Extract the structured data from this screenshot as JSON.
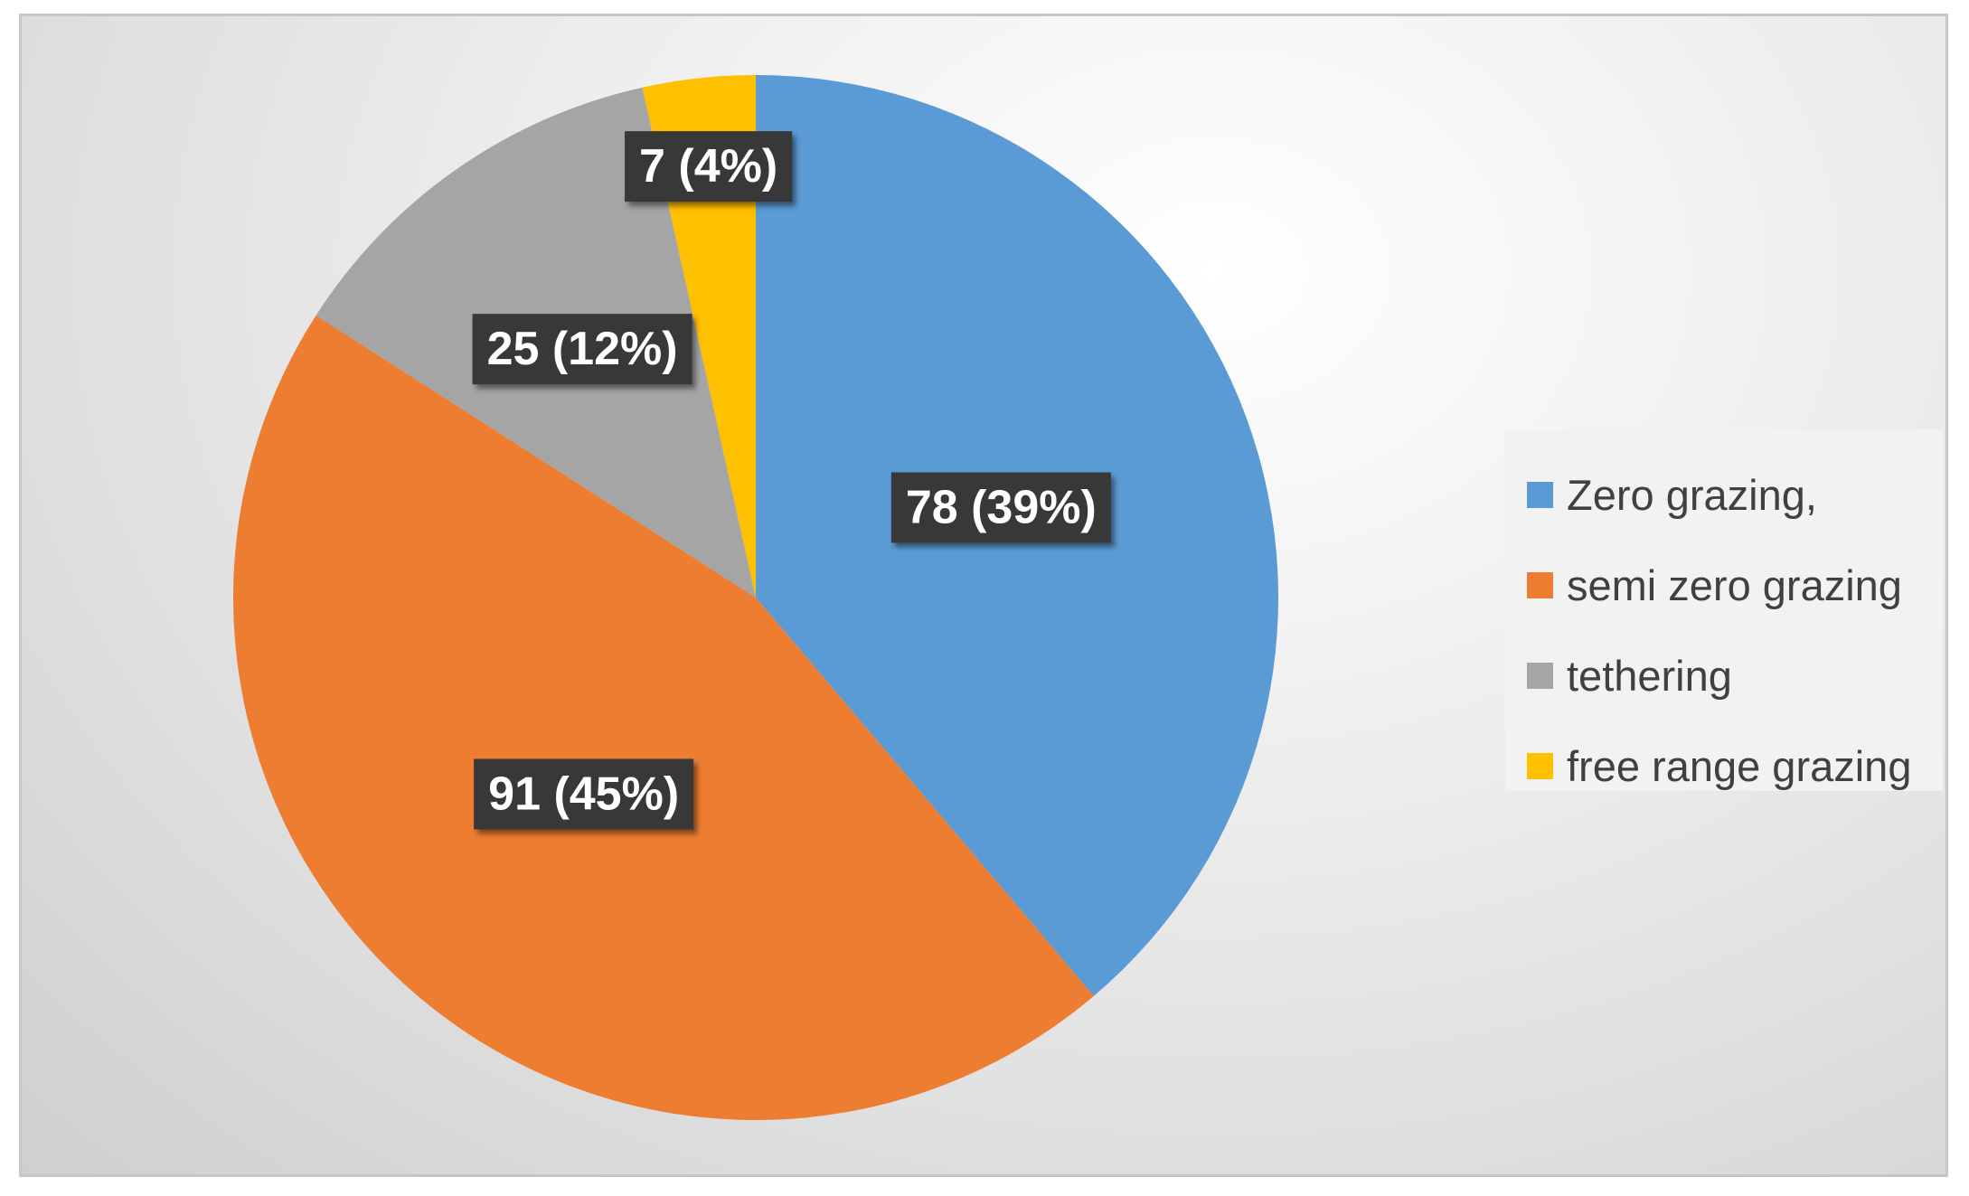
{
  "chart_data": {
    "type": "pie",
    "title": "",
    "categories": [
      "Zero grazing,",
      "semi zero grazing",
      "tethering",
      "free range grazing"
    ],
    "values": [
      78,
      91,
      25,
      7
    ],
    "percent_labels": [
      "39%",
      "45%",
      "12%",
      "4%"
    ],
    "data_labels": [
      "78 (39%)",
      "91 (45%)",
      "25 (12%)",
      "7 (4%)"
    ],
    "colors": [
      "#5b9bd5",
      "#ed7d31",
      "#a5a5a5",
      "#ffc000"
    ],
    "start_angle_deg": 0,
    "direction": "clockwise",
    "legend": {
      "position": "right",
      "entries": [
        "Zero grazing,",
        "semi zero grazing",
        "tethering",
        "free range grazing"
      ]
    }
  }
}
